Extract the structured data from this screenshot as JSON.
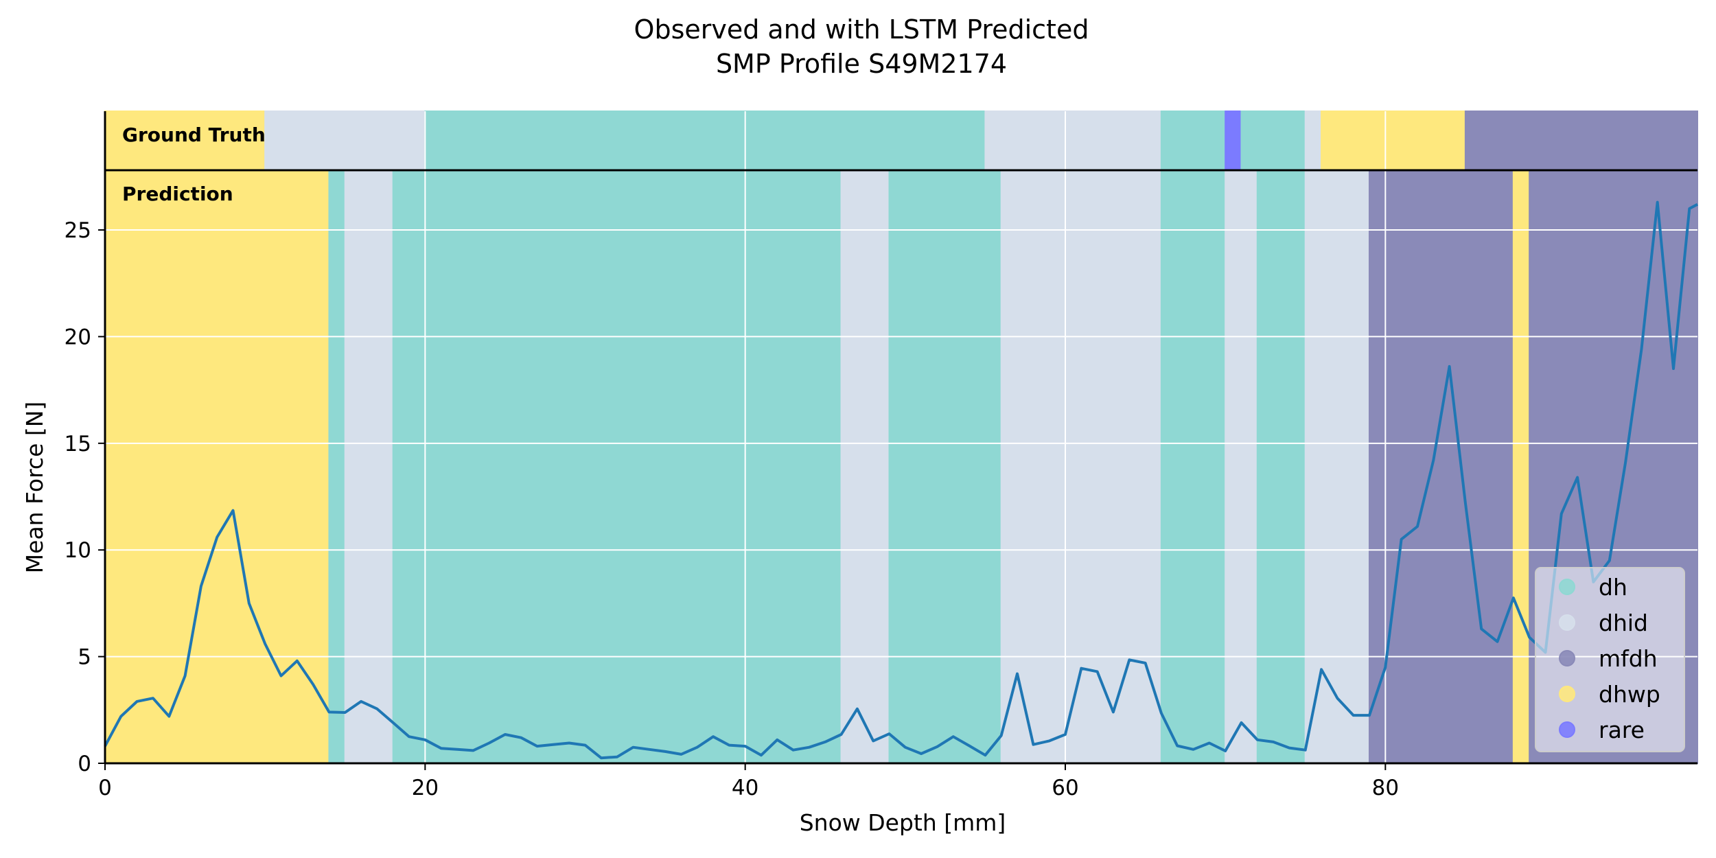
{
  "chart_data": {
    "type": "line",
    "title_lines": [
      "Observed and with LSTM Predicted",
      "SMP Profile S49M2174"
    ],
    "xlabel": "Snow Depth [mm]",
    "ylabel": "Mean Force [N]",
    "xlim": [
      0,
      99.5
    ],
    "ylim": [
      0,
      27.8
    ],
    "xticks": [
      0,
      20,
      40,
      60,
      80
    ],
    "yticks": [
      0,
      5,
      10,
      15,
      20,
      25
    ],
    "grid": true,
    "legend_position": "lower-right",
    "panel_labels": {
      "ground_truth": "Ground Truth",
      "prediction": "Prediction"
    },
    "classes": [
      {
        "name": "dh",
        "color": "#8FD8D3"
      },
      {
        "name": "dhid",
        "color": "#D6DFEB"
      },
      {
        "name": "mfdh",
        "color": "#8A8AB8"
      },
      {
        "name": "dhwp",
        "color": "#FEE87E"
      },
      {
        "name": "rare",
        "color": "#7B7BFF"
      }
    ],
    "ground_truth_segments": [
      {
        "start": 0,
        "end": 10,
        "label": "dhwp"
      },
      {
        "start": 10,
        "end": 20,
        "label": "dhid"
      },
      {
        "start": 20,
        "end": 55,
        "label": "dh"
      },
      {
        "start": 55,
        "end": 66,
        "label": "dhid"
      },
      {
        "start": 66,
        "end": 70,
        "label": "dh"
      },
      {
        "start": 70,
        "end": 71,
        "label": "rare"
      },
      {
        "start": 71,
        "end": 75,
        "label": "dh"
      },
      {
        "start": 75,
        "end": 76,
        "label": "dhid"
      },
      {
        "start": 76,
        "end": 85,
        "label": "dhwp"
      },
      {
        "start": 85,
        "end": 99.5,
        "label": "mfdh"
      }
    ],
    "prediction_segments": [
      {
        "start": 0,
        "end": 14,
        "label": "dhwp"
      },
      {
        "start": 14,
        "end": 15,
        "label": "dh"
      },
      {
        "start": 15,
        "end": 18,
        "label": "dhid"
      },
      {
        "start": 18,
        "end": 46,
        "label": "dh"
      },
      {
        "start": 46,
        "end": 49,
        "label": "dhid"
      },
      {
        "start": 49,
        "end": 56,
        "label": "dh"
      },
      {
        "start": 56,
        "end": 66,
        "label": "dhid"
      },
      {
        "start": 66,
        "end": 70,
        "label": "dh"
      },
      {
        "start": 70,
        "end": 72,
        "label": "dhid"
      },
      {
        "start": 72,
        "end": 75,
        "label": "dh"
      },
      {
        "start": 75,
        "end": 79,
        "label": "dhid"
      },
      {
        "start": 79,
        "end": 88,
        "label": "mfdh"
      },
      {
        "start": 88,
        "end": 89,
        "label": "dhwp"
      },
      {
        "start": 89,
        "end": 99.5,
        "label": "mfdh"
      }
    ],
    "series": [
      {
        "color": "#1F77B4",
        "x": [
          0,
          1,
          2,
          3,
          4,
          5,
          6,
          7,
          8,
          9,
          10,
          11,
          12,
          13,
          14,
          15,
          16,
          17,
          18,
          19,
          20,
          21,
          22,
          23,
          24,
          25,
          26,
          27,
          28,
          29,
          30,
          31,
          32,
          33,
          34,
          35,
          36,
          37,
          38,
          39,
          40,
          41,
          42,
          43,
          44,
          45,
          46,
          47,
          48,
          49,
          50,
          51,
          52,
          53,
          54,
          55,
          56,
          57,
          58,
          59,
          60,
          61,
          62,
          63,
          64,
          65,
          66,
          67,
          68,
          69,
          70,
          71,
          72,
          73,
          74,
          75,
          76,
          77,
          78,
          79,
          80,
          81,
          82,
          83,
          84,
          85,
          86,
          87,
          88,
          89,
          90,
          91,
          92,
          93,
          94,
          95,
          96,
          97,
          98,
          99,
          99.5
        ],
        "y": [
          0.8,
          2.2,
          2.9,
          3.05,
          2.2,
          4.1,
          8.3,
          10.6,
          11.85,
          7.5,
          5.6,
          4.1,
          4.8,
          3.7,
          2.4,
          2.38,
          2.9,
          2.55,
          1.9,
          1.25,
          1.1,
          0.7,
          0.65,
          0.6,
          0.95,
          1.35,
          1.2,
          0.8,
          0.88,
          0.95,
          0.85,
          0.25,
          0.3,
          0.75,
          0.65,
          0.55,
          0.42,
          0.75,
          1.25,
          0.85,
          0.8,
          0.38,
          1.1,
          0.62,
          0.75,
          1.0,
          1.35,
          2.55,
          1.05,
          1.38,
          0.75,
          0.45,
          0.78,
          1.25,
          0.82,
          0.38,
          1.3,
          4.2,
          0.88,
          1.05,
          1.35,
          4.45,
          4.3,
          2.4,
          4.85,
          4.7,
          2.35,
          0.82,
          0.65,
          0.95,
          0.58,
          1.9,
          1.1,
          1.0,
          0.72,
          0.62,
          4.4,
          3.05,
          2.25,
          2.25,
          4.5,
          10.5,
          11.1,
          14.2,
          18.6,
          12.2,
          6.3,
          5.7,
          7.75,
          5.9,
          5.2,
          11.7,
          13.4,
          8.5,
          9.5,
          14.1,
          19.4,
          26.3,
          18.5,
          26.0,
          26.2
        ]
      }
    ]
  }
}
